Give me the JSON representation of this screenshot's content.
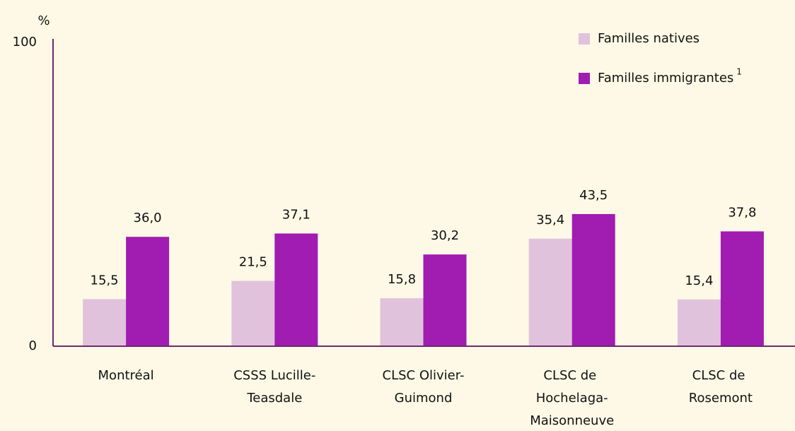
{
  "chart_data": {
    "type": "bar",
    "y_label": "%",
    "categories": [
      "Montréal",
      "CSSS Lucille-Teasdale",
      "CLSC Olivier-Guimond",
      "CLSC de Hochelaga-Maisonneuve",
      "CLSC de Rosemont"
    ],
    "series": [
      {
        "name": "Familles natives",
        "color": "#e1c2dd",
        "values": [
          15.5,
          21.5,
          15.8,
          35.4,
          15.4
        ],
        "value_labels": [
          "15,5",
          "21,5",
          "15,8",
          "35,4",
          "15,4"
        ]
      },
      {
        "name": "Familles immigrantes",
        "name_superscript": "1",
        "color": "#a11cb0",
        "values": [
          36.0,
          37.1,
          30.2,
          43.5,
          37.8
        ],
        "value_labels": [
          "36,0",
          "37,1",
          "30,2",
          "43,5",
          "37,8"
        ]
      }
    ],
    "ylim": [
      0,
      100
    ],
    "yticks": [
      0,
      100
    ],
    "grid": false,
    "legend": "top-right"
  }
}
